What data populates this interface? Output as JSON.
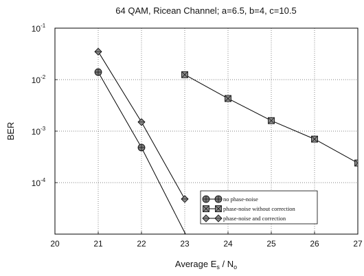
{
  "chart_data": {
    "type": "line",
    "title": "64 QAM, Ricean Channel; a=6.5, b=4, c=10.5",
    "xlabel_parts": {
      "main": "Average E",
      "sub1": "s",
      "mid": " / N",
      "sub2": "o"
    },
    "ylabel": "BER",
    "xlim": [
      20,
      27
    ],
    "ylim": [
      1e-05,
      0.1
    ],
    "yscale": "log",
    "grid": true,
    "grid_style": "dotted",
    "legend_position": "lower-right",
    "x_ticks": [
      "20",
      "21",
      "22",
      "23",
      "24",
      "25",
      "26",
      "27"
    ],
    "y_ticks": [
      {
        "value": 0.1,
        "base": "10",
        "exp": "-1"
      },
      {
        "value": 0.01,
        "base": "10",
        "exp": "-2"
      },
      {
        "value": 0.001,
        "base": "10",
        "exp": "-3"
      },
      {
        "value": 0.0001,
        "base": "10",
        "exp": "-4"
      }
    ],
    "series": [
      {
        "name": "no phase-noise",
        "marker": "circle",
        "x": [
          21,
          22,
          23.2
        ],
        "y": [
          0.014,
          0.00048,
          5e-06
        ]
      },
      {
        "name": "phase-noise without correction",
        "marker": "square",
        "x": [
          23,
          24,
          25,
          26,
          27
        ],
        "y": [
          0.0125,
          0.0043,
          0.0016,
          0.0007,
          0.00024
        ]
      },
      {
        "name": "phase-noise and correction",
        "marker": "diamond",
        "x": [
          21,
          22,
          23
        ],
        "y": [
          0.035,
          0.0015,
          4.8e-05
        ]
      }
    ]
  }
}
